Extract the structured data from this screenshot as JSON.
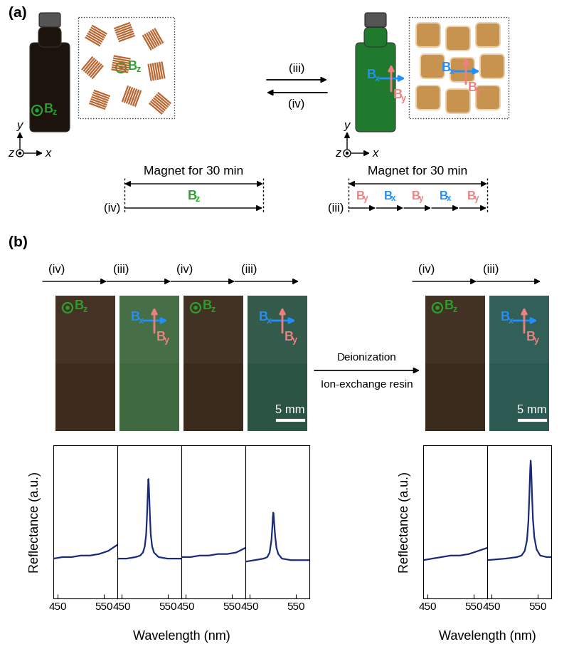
{
  "panel_a": {
    "label": "(a)",
    "forward": "(iii)",
    "backward": "(iv)",
    "left_state": {
      "fields": [
        "Bz"
      ],
      "color": "#1c130d"
    },
    "right_state": {
      "fields": [
        "Bx",
        "By"
      ],
      "color": "#1f7a2e"
    },
    "axes_labels": [
      "x",
      "y",
      "z"
    ],
    "timelines": [
      {
        "step": "(iv)",
        "title": "Magnet for 30 min",
        "sequence": [
          "Bz"
        ]
      },
      {
        "step": "(iii)",
        "title": "Magnet for 30 min",
        "sequence": [
          "By",
          "Bx",
          "By",
          "Bx",
          "By"
        ]
      }
    ]
  },
  "panel_b": {
    "label": "(b)",
    "treatment": [
      "Deionization",
      "Ion-exchange resin"
    ],
    "y_labels": [
      "Reflectance (a.u.)",
      "Reflectance (a.u.)"
    ],
    "x_labels": [
      "Wavelength (nm)",
      "Wavelength (nm)"
    ],
    "photos": [
      {
        "step": "(iv)",
        "fields": [
          "Bz"
        ],
        "color": "#3d2b1c"
      },
      {
        "step": "(iii)",
        "fields": [
          "Bx",
          "By"
        ],
        "color": "#3f6a40"
      },
      {
        "step": "(iv)",
        "fields": [
          "Bz"
        ],
        "color": "#3a2a1c"
      },
      {
        "step": "(iii)",
        "fields": [
          "Bx",
          "By"
        ],
        "color": "#2c5444",
        "scale_bar": "5 mm"
      },
      {
        "step": "(iv)",
        "fields": [
          "Bz"
        ],
        "color": "#3a2a1c"
      },
      {
        "step": "(iii)",
        "fields": [
          "Bx",
          "By"
        ],
        "color": "#2a5a52",
        "scale_bar": "5 mm"
      }
    ]
  },
  "chart_data": [
    {
      "type": "line",
      "color": "#1a2a7a",
      "xlim": [
        440,
        580
      ],
      "xticks": [
        450,
        550
      ],
      "ylim": [
        0,
        1
      ],
      "tick_labels": "x",
      "x": [
        440,
        460,
        480,
        500,
        520,
        540,
        560,
        580
      ],
      "values": [
        0.26,
        0.27,
        0.27,
        0.28,
        0.28,
        0.29,
        0.31,
        0.35
      ]
    },
    {
      "type": "line",
      "color": "#1a2a7a",
      "xlim": [
        440,
        580
      ],
      "xticks": [
        450,
        550
      ],
      "ylim": [
        0,
        1
      ],
      "tick_labels": "x",
      "x": [
        440,
        460,
        480,
        490,
        496,
        500,
        503,
        505,
        507,
        508,
        509,
        511,
        513,
        516,
        520,
        530,
        550,
        580
      ],
      "values": [
        0.26,
        0.26,
        0.27,
        0.28,
        0.3,
        0.34,
        0.42,
        0.55,
        0.72,
        0.78,
        0.73,
        0.56,
        0.42,
        0.34,
        0.3,
        0.27,
        0.26,
        0.26
      ]
    },
    {
      "type": "line",
      "color": "#1a2a7a",
      "xlim": [
        440,
        580
      ],
      "xticks": [
        450,
        550
      ],
      "ylim": [
        0,
        1
      ],
      "tick_labels": "x",
      "x": [
        440,
        460,
        480,
        500,
        520,
        540,
        560,
        580
      ],
      "values": [
        0.27,
        0.27,
        0.28,
        0.28,
        0.29,
        0.29,
        0.3,
        0.33
      ]
    },
    {
      "type": "line",
      "color": "#1a2a7a",
      "xlim": [
        440,
        580
      ],
      "xticks": [
        450,
        550
      ],
      "ylim": [
        0,
        1
      ],
      "tick_labels": "x",
      "x": [
        440,
        460,
        480,
        488,
        493,
        497,
        499,
        500,
        501,
        502,
        503,
        505,
        508,
        512,
        520,
        540,
        580
      ],
      "values": [
        0.24,
        0.25,
        0.26,
        0.27,
        0.3,
        0.38,
        0.47,
        0.53,
        0.56,
        0.54,
        0.49,
        0.41,
        0.33,
        0.29,
        0.26,
        0.25,
        0.25
      ]
    },
    {
      "type": "line",
      "color": "#1a2a7a",
      "xlim": [
        440,
        580
      ],
      "xticks": [
        450,
        550
      ],
      "ylim": [
        0,
        1
      ],
      "tick_labels": "x",
      "x": [
        440,
        460,
        480,
        500,
        520,
        540,
        560,
        580
      ],
      "values": [
        0.25,
        0.26,
        0.27,
        0.28,
        0.28,
        0.29,
        0.31,
        0.33
      ]
    },
    {
      "type": "line",
      "color": "#1a2a7a",
      "xlim": [
        440,
        580
      ],
      "xticks": [
        450,
        550
      ],
      "ylim": [
        0,
        1
      ],
      "tick_labels": "x",
      "x": [
        440,
        480,
        505,
        515,
        522,
        527,
        530,
        532,
        534,
        535,
        536,
        538,
        540,
        543,
        548,
        556,
        570,
        580
      ],
      "values": [
        0.25,
        0.26,
        0.27,
        0.28,
        0.31,
        0.38,
        0.5,
        0.66,
        0.84,
        0.9,
        0.86,
        0.68,
        0.52,
        0.4,
        0.32,
        0.28,
        0.27,
        0.27
      ]
    }
  ]
}
